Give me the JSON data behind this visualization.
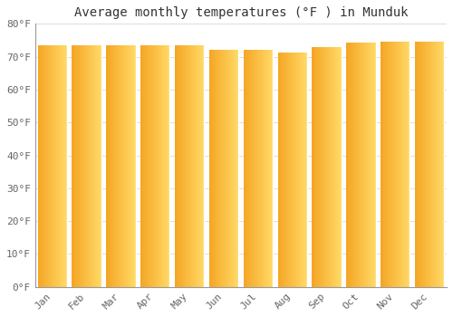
{
  "title": "Average monthly temperatures (°F ) in Munduk",
  "months": [
    "Jan",
    "Feb",
    "Mar",
    "Apr",
    "May",
    "Jun",
    "Jul",
    "Aug",
    "Sep",
    "Oct",
    "Nov",
    "Dec"
  ],
  "values": [
    73.5,
    73.5,
    73.5,
    73.5,
    73.5,
    72.1,
    72.0,
    71.4,
    72.8,
    74.3,
    74.5,
    74.5
  ],
  "ylim": [
    0,
    80
  ],
  "yticks": [
    0,
    10,
    20,
    30,
    40,
    50,
    60,
    70,
    80
  ],
  "bar_color_left": "#F5A623",
  "bar_color_right": "#FFD966",
  "background_color": "#FFFFFF",
  "grid_color": "#dddddd",
  "title_fontsize": 10,
  "tick_fontsize": 8,
  "title_font": "monospace",
  "tick_font": "monospace",
  "bar_width": 0.85
}
